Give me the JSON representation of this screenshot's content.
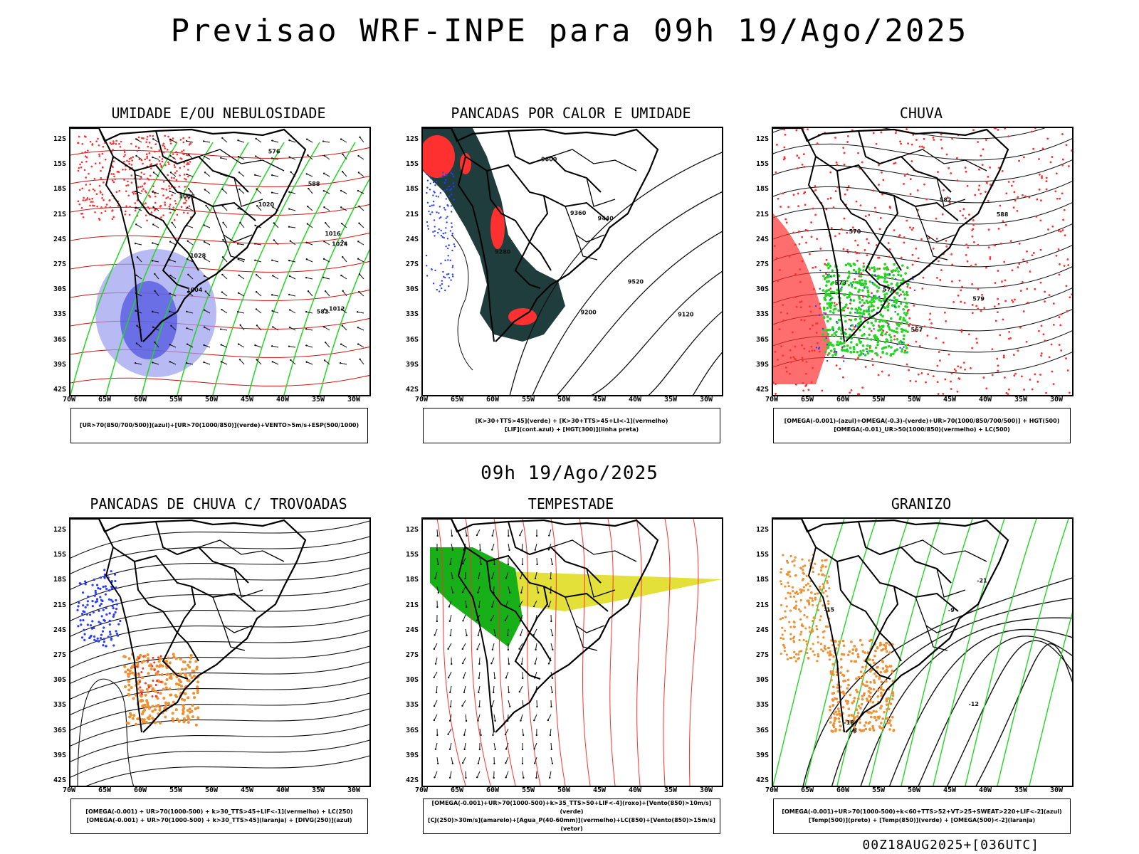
{
  "title": "Previsao WRF-INPE  para 09h 19/Ago/2025",
  "mid_title": "09h 19/Ago/2025",
  "footer": "00Z18AUG2025+[036UTC]",
  "y_labels": [
    "12S",
    "15S",
    "18S",
    "21S",
    "24S",
    "27S",
    "30S",
    "33S",
    "36S",
    "39S",
    "42S"
  ],
  "x_labels": [
    "70W",
    "65W",
    "60W",
    "55W",
    "50W",
    "45W",
    "40W",
    "35W",
    "30W"
  ],
  "colors": {
    "blue": "#2a3cff",
    "green": "#22d622",
    "red": "#ff3030",
    "lavender": "#9a9cf0",
    "dark_teal": "#1f3d3d",
    "yellow": "#e4e03a",
    "orange": "#f09030",
    "black": "#000000"
  },
  "panels": [
    {
      "key": "umidade",
      "title": "UMIDADE E/OU NEBULOSIDADE",
      "legend": [
        "[UR>70(850/700/500)](azul)+[UR>70(1000/850)](verde)+VENTO>5m/s+ESP(500/1000)"
      ],
      "contour_labels": [
        "1008",
        "1016",
        "1020",
        "1024",
        "1028",
        "1012",
        "1004",
        "576",
        "582",
        "588"
      ]
    },
    {
      "key": "pancadas_calor",
      "title": "PANCADAS POR CALOR E UMIDADE",
      "legend": [
        "[K>30+TTS>45](verde) + [K>30+TTS>45+LI<-1](vermelho)",
        "[LIF](cont.azul) + [HGT(300)](linha preta)"
      ],
      "contour_labels": [
        "9600",
        "9520",
        "9440",
        "9360",
        "9280",
        "9200",
        "9120"
      ]
    },
    {
      "key": "chuva",
      "title": "CHUVA",
      "legend": [
        "[OMEGA(-0.001)-(azul)+OMEGA(-0.3)-(verde)+UR>70(1000/850/700/500)] + HGT(500)",
        "[OMEGA(-0.01)_UR>50(1000/850)(vermelho) + LC(500)"
      ],
      "contour_labels": [
        "582",
        "579",
        "576",
        "573",
        "570",
        "567",
        "588"
      ]
    },
    {
      "key": "trovoadas",
      "title": "PANCADAS DE CHUVA C/ TROVOADAS",
      "legend": [
        "[OMEGA(-0.001) + UR>70(1000-500) + k>30_TTS>45+LIF<-1](vermelho) + LC(250)",
        "[OMEGA(-0.001) + UR>70(1000-500) + k>30_TTS>45](laranja) + [DIVG(250)](azul)"
      ],
      "contour_labels": []
    },
    {
      "key": "tempestade",
      "title": "TEMPESTADE",
      "legend": [
        "[OMEGA(-0.001)+UR>70(1000-500)+k>35_TTS>50+LIF<-4](roxo)+[Vento(850)>10m/s](verde)",
        "[CJ(250)>30m/s](amarelo)+[Agua_P(40-60mm)](vermelho)+LC(850)+[Vento(850)>15m/s](vetor)"
      ],
      "contour_labels": []
    },
    {
      "key": "granizo",
      "title": "GRANIZO",
      "legend": [
        "[OMEGA(-0.001)+UR>70(1000-500)+k<60+TTS>52+VT>25+SWEAT>220+LIF<-2](azul)",
        "[Temp(500)](preto) + [Temp(850)](verde) + [OMEGA(500)<-2](laranja)"
      ],
      "contour_labels": [
        "-12",
        "-15",
        "-18",
        "-21",
        "-9",
        "-6"
      ]
    }
  ]
}
